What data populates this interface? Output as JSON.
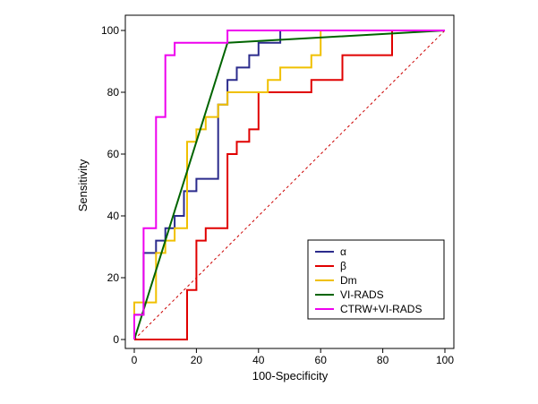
{
  "chart_data": {
    "type": "line",
    "subtype": "roc",
    "title": "",
    "xlabel": "100-Specificity",
    "ylabel": "Sensitivity",
    "xlim": [
      0,
      100
    ],
    "ylim": [
      0,
      100
    ],
    "xticks": [
      0,
      20,
      40,
      60,
      80,
      100
    ],
    "yticks": [
      0,
      20,
      40,
      60,
      80,
      100
    ],
    "grid": false,
    "legend_position": "bottom-right",
    "reference_line": {
      "name": "chance",
      "points": [
        [
          0,
          0
        ],
        [
          100,
          100
        ]
      ],
      "color": "#cc0000",
      "style": "dashed"
    },
    "series": [
      {
        "name": "α",
        "color": "#2b2b8c",
        "points": [
          [
            0,
            0
          ],
          [
            0,
            8
          ],
          [
            3,
            8
          ],
          [
            3,
            28
          ],
          [
            7,
            28
          ],
          [
            7,
            32
          ],
          [
            10,
            32
          ],
          [
            10,
            36
          ],
          [
            13,
            36
          ],
          [
            13,
            40
          ],
          [
            16,
            40
          ],
          [
            16,
            48
          ],
          [
            20,
            48
          ],
          [
            20,
            52
          ],
          [
            27,
            52
          ],
          [
            27,
            76
          ],
          [
            30,
            76
          ],
          [
            30,
            84
          ],
          [
            33,
            84
          ],
          [
            33,
            88
          ],
          [
            37,
            88
          ],
          [
            37,
            92
          ],
          [
            40,
            92
          ],
          [
            40,
            96
          ],
          [
            47,
            96
          ],
          [
            47,
            100
          ],
          [
            100,
            100
          ]
        ]
      },
      {
        "name": "β",
        "color": "#e00000",
        "points": [
          [
            0,
            0
          ],
          [
            17,
            0
          ],
          [
            17,
            16
          ],
          [
            20,
            16
          ],
          [
            20,
            32
          ],
          [
            23,
            32
          ],
          [
            23,
            36
          ],
          [
            30,
            36
          ],
          [
            30,
            60
          ],
          [
            33,
            60
          ],
          [
            33,
            64
          ],
          [
            37,
            64
          ],
          [
            37,
            68
          ],
          [
            40,
            68
          ],
          [
            40,
            80
          ],
          [
            57,
            80
          ],
          [
            57,
            84
          ],
          [
            67,
            84
          ],
          [
            67,
            92
          ],
          [
            83,
            92
          ],
          [
            83,
            100
          ],
          [
            100,
            100
          ]
        ]
      },
      {
        "name": "Dm",
        "color": "#f0c000",
        "points": [
          [
            0,
            0
          ],
          [
            0,
            12
          ],
          [
            7,
            12
          ],
          [
            7,
            28
          ],
          [
            10,
            28
          ],
          [
            10,
            32
          ],
          [
            13,
            32
          ],
          [
            13,
            36
          ],
          [
            17,
            36
          ],
          [
            17,
            56
          ],
          [
            17,
            64
          ],
          [
            20,
            64
          ],
          [
            20,
            68
          ],
          [
            23,
            68
          ],
          [
            23,
            72
          ],
          [
            27,
            72
          ],
          [
            27,
            76
          ],
          [
            30,
            76
          ],
          [
            30,
            80
          ],
          [
            43,
            80
          ],
          [
            43,
            84
          ],
          [
            47,
            84
          ],
          [
            47,
            88
          ],
          [
            57,
            88
          ],
          [
            57,
            92
          ],
          [
            60,
            92
          ],
          [
            60,
            100
          ],
          [
            100,
            100
          ]
        ]
      },
      {
        "name": "VI-RADS",
        "color": "#006400",
        "points": [
          [
            0,
            0
          ],
          [
            30,
            96
          ],
          [
            100,
            100
          ]
        ]
      },
      {
        "name": "CTRW+VI-RADS",
        "color": "#ee00ee",
        "points": [
          [
            0,
            0
          ],
          [
            0,
            8
          ],
          [
            3,
            8
          ],
          [
            3,
            36
          ],
          [
            7,
            36
          ],
          [
            7,
            72
          ],
          [
            10,
            72
          ],
          [
            10,
            92
          ],
          [
            13,
            92
          ],
          [
            13,
            96
          ],
          [
            30,
            96
          ],
          [
            30,
            100
          ],
          [
            100,
            100
          ]
        ]
      }
    ]
  }
}
